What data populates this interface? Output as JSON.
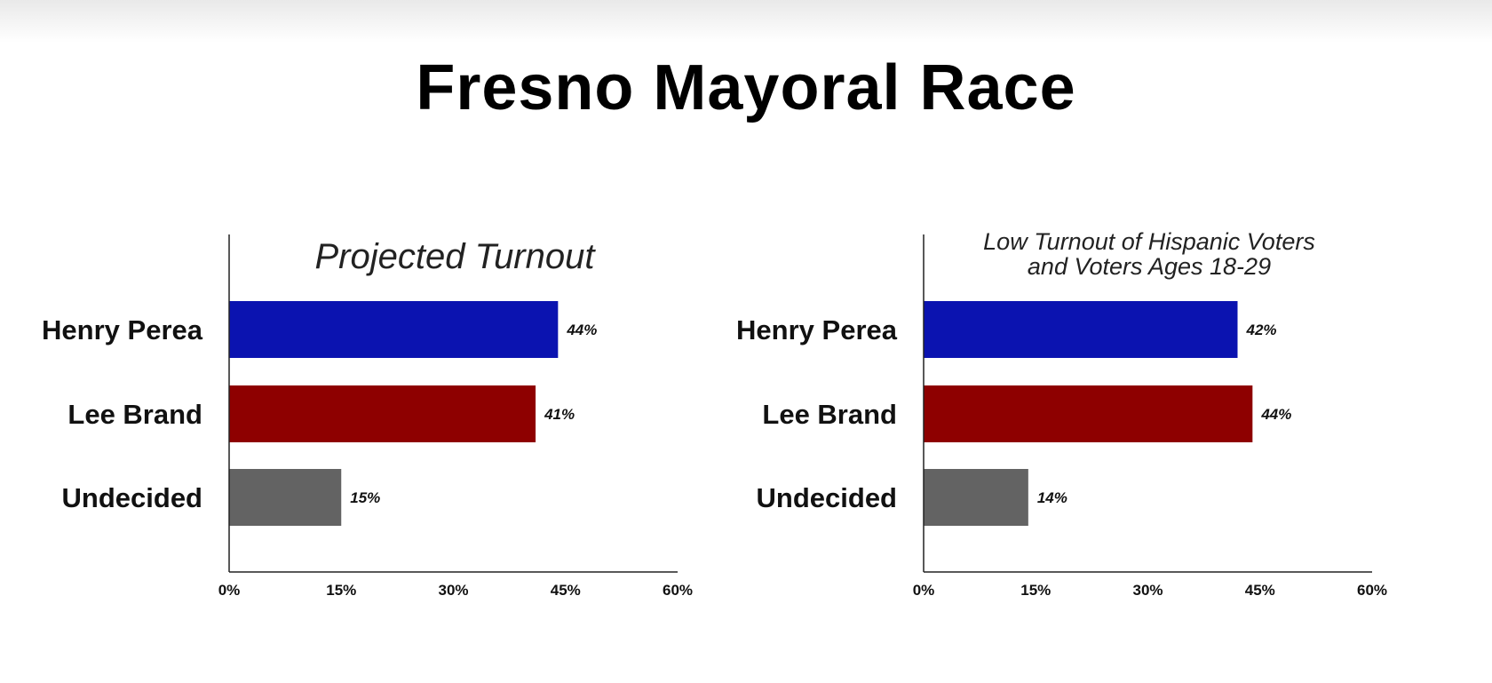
{
  "main_title": "Fresno Mayoral Race",
  "chart_data": [
    {
      "type": "bar",
      "orientation": "horizontal",
      "title": "Projected Turnout",
      "title_lines": [
        "Projected Turnout"
      ],
      "categories": [
        "Henry Perea",
        "Lee Brand",
        "Undecided"
      ],
      "values": [
        44,
        41,
        15
      ],
      "value_labels": [
        "44%",
        "41%",
        "15%"
      ],
      "colors": [
        "#0b13b0",
        "#8e0000",
        "#636363"
      ],
      "xlim": [
        0,
        60
      ],
      "ticks": [
        "0%",
        "15%",
        "30%",
        "45%",
        "60%"
      ],
      "tick_values": [
        0,
        15,
        30,
        45,
        60
      ],
      "grid": false
    },
    {
      "type": "bar",
      "orientation": "horizontal",
      "title": "Low Turnout of Hispanic Voters and Voters Ages 18-29",
      "title_lines": [
        "Low Turnout of Hispanic Voters",
        "and Voters Ages 18-29"
      ],
      "categories": [
        "Henry Perea",
        "Lee Brand",
        "Undecided"
      ],
      "values": [
        42,
        44,
        14
      ],
      "value_labels": [
        "42%",
        "44%",
        "14%"
      ],
      "colors": [
        "#0b13b0",
        "#8e0000",
        "#636363"
      ],
      "xlim": [
        0,
        60
      ],
      "ticks": [
        "0%",
        "15%",
        "30%",
        "45%",
        "60%"
      ],
      "tick_values": [
        0,
        15,
        30,
        45,
        60
      ],
      "grid": false
    }
  ]
}
